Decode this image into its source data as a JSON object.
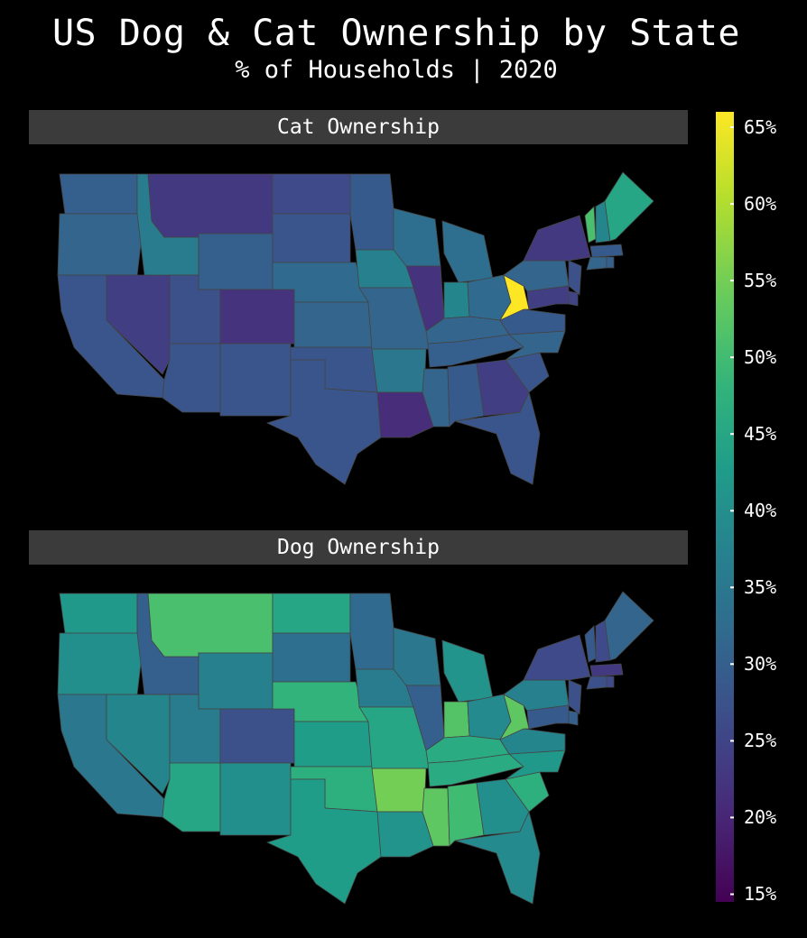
{
  "title": "US Dog & Cat Ownership by State",
  "subtitle": "% of Households | 2020",
  "chart_data": [
    {
      "type": "choropleth",
      "panel_title": "Cat Ownership",
      "highlight": {
        "state": "West Virginia",
        "value": 66
      },
      "states": {
        "WA": 30,
        "OR": 31,
        "CA": 28,
        "NV": 24,
        "ID": 36,
        "MT": 23,
        "WY": 30,
        "UT": 27,
        "AZ": 28,
        "CO": 22,
        "NM": 28,
        "ND": 26,
        "SD": 28,
        "NE": 32,
        "KS": 31,
        "OK": 28,
        "TX": 28,
        "MN": 29,
        "IA": 37,
        "MO": 31,
        "AR": 35,
        "LA": 21,
        "WI": 33,
        "IL": 22,
        "MS": 31,
        "MI": 33,
        "IN": 38,
        "OH": 32,
        "KY": 31,
        "TN": 30,
        "AL": 29,
        "GA": 24,
        "FL": 28,
        "SC": 28,
        "NC": 31,
        "VA": 29,
        "WV": 66,
        "PA": 31,
        "NY": 23,
        "VT": 51,
        "NH": 38,
        "ME": 45,
        "MA": 29,
        "CT": 31,
        "RI": 30,
        "NJ": 27,
        "DE": 25,
        "MD": 24
      }
    },
    {
      "type": "choropleth",
      "panel_title": "Dog Ownership",
      "states": {
        "WA": 42,
        "OR": 40,
        "CA": 35,
        "NV": 38,
        "ID": 30,
        "MT": 51,
        "WY": 37,
        "UT": 36,
        "AZ": 45,
        "CO": 27,
        "NM": 40,
        "ND": 45,
        "SD": 33,
        "NE": 48,
        "KS": 43,
        "OK": 47,
        "TX": 43,
        "MN": 32,
        "IA": 36,
        "MO": 45,
        "AR": 55,
        "LA": 41,
        "WI": 35,
        "IL": 30,
        "MS": 53,
        "MI": 41,
        "IN": 52,
        "OH": 39,
        "KY": 46,
        "TN": 46,
        "AL": 50,
        "GA": 40,
        "FL": 39,
        "SC": 47,
        "NC": 42,
        "VA": 38,
        "WV": 53,
        "PA": 37,
        "NY": 26,
        "VT": 29,
        "NH": 26,
        "ME": 31,
        "MA": 23,
        "CT": 27,
        "RI": 26,
        "NJ": 27,
        "DE": 30,
        "MD": 29
      }
    }
  ],
  "colorbar": {
    "min": 14.5,
    "max": 66,
    "ticks": [
      {
        "value": 15,
        "label": "15%"
      },
      {
        "value": 20,
        "label": "20%"
      },
      {
        "value": 25,
        "label": "25%"
      },
      {
        "value": 30,
        "label": "30%"
      },
      {
        "value": 35,
        "label": "35%"
      },
      {
        "value": 40,
        "label": "40%"
      },
      {
        "value": 45,
        "label": "45%"
      },
      {
        "value": 50,
        "label": "50%"
      },
      {
        "value": 55,
        "label": "55%"
      },
      {
        "value": 60,
        "label": "60%"
      },
      {
        "value": 65,
        "label": "65%"
      }
    ],
    "colormap": "viridis"
  },
  "colors": {
    "background": "#000000",
    "header_bg": "#3b3b3b",
    "state_border": "#444444"
  }
}
